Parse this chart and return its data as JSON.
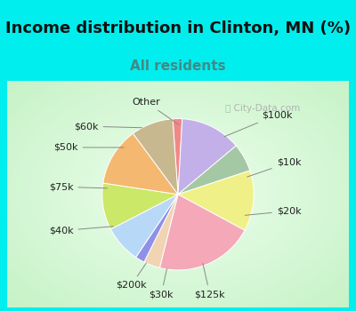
{
  "title": "Income distribution in Clinton, MN (%)",
  "subtitle": "All residents",
  "bg_cyan": "#00EEEE",
  "bg_chart_center": "#f0faf5",
  "bg_chart_edge": "#c8eedd",
  "labels": [
    "Other",
    "$100k",
    "$10k",
    "$20k",
    "$125k",
    "$30k",
    "$200k",
    "$40k",
    "$75k",
    "$50k",
    "$60k"
  ],
  "sizes": [
    2.0,
    13.0,
    6.0,
    13.0,
    21.0,
    3.5,
    2.0,
    8.0,
    10.0,
    12.5,
    9.0
  ],
  "colors": [
    "#f08888",
    "#c4b0e8",
    "#a4c8a4",
    "#f0f088",
    "#f4a8b8",
    "#f0d4b4",
    "#9090e8",
    "#b8d8f8",
    "#cce868",
    "#f4b870",
    "#c8b890"
  ],
  "watermark": "City-Data.com",
  "startangle": 94,
  "title_fontsize": 13,
  "subtitle_fontsize": 11,
  "label_fontsize": 8
}
